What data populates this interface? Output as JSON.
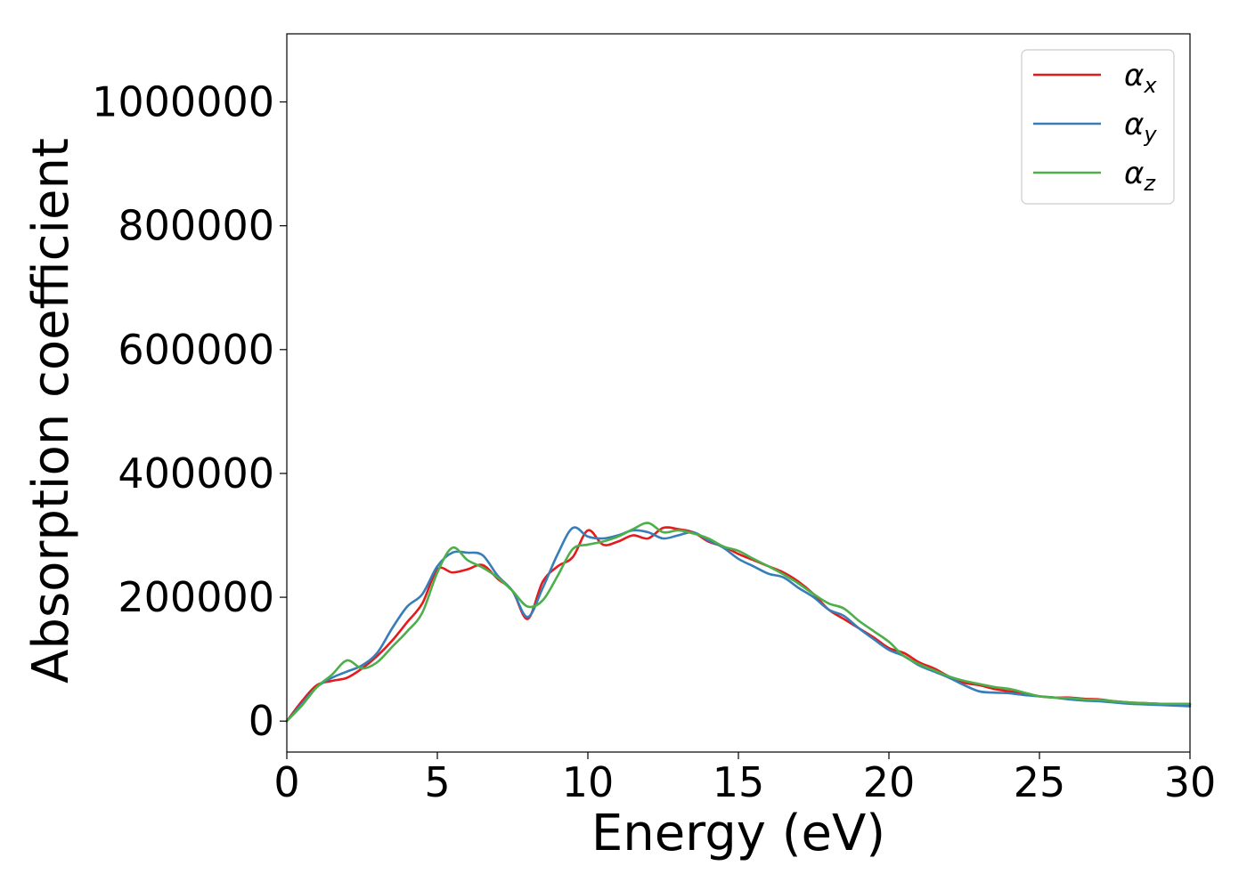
{
  "chart_data": {
    "type": "line",
    "title": "",
    "xlabel": "Energy (eV)",
    "ylabel": "Absorption coefficient",
    "xlim": [
      0,
      30
    ],
    "ylim": [
      -50000,
      1110000
    ],
    "xticks": [
      0,
      5,
      10,
      15,
      20,
      25,
      30
    ],
    "xtick_labels": [
      "0",
      "5",
      "10",
      "15",
      "20",
      "25",
      "30"
    ],
    "yticks": [
      0,
      200000,
      400000,
      600000,
      800000,
      1000000
    ],
    "ytick_labels": [
      "0",
      "200000",
      "400000",
      "600000",
      "800000",
      "1000000"
    ],
    "grid": false,
    "legend_position": "top-right",
    "x": [
      0,
      0.5,
      1,
      1.5,
      2,
      2.5,
      3,
      3.5,
      4,
      4.5,
      5,
      5.5,
      6,
      6.5,
      7,
      7.5,
      8,
      8.5,
      9,
      9.5,
      10,
      10.5,
      11,
      11.5,
      12,
      12.5,
      13,
      13.5,
      14,
      14.5,
      15,
      15.5,
      16,
      16.5,
      17,
      17.5,
      18,
      18.5,
      19,
      19.5,
      20,
      20.5,
      21,
      21.5,
      22,
      22.5,
      23,
      23.5,
      24,
      24.5,
      25,
      25.5,
      26,
      26.5,
      27,
      27.5,
      28,
      28.5,
      29,
      29.5,
      30
    ],
    "series": [
      {
        "name": "α_x",
        "legend_main": "α",
        "legend_sub": "x",
        "color": "#e41a1c",
        "values": [
          0,
          32000,
          58000,
          65000,
          70000,
          85000,
          105000,
          130000,
          160000,
          190000,
          245000,
          240000,
          245000,
          252000,
          230000,
          210000,
          165000,
          225000,
          250000,
          265000,
          308000,
          285000,
          290000,
          300000,
          295000,
          312000,
          310000,
          305000,
          290000,
          282000,
          270000,
          260000,
          250000,
          240000,
          225000,
          205000,
          180000,
          165000,
          150000,
          135000,
          118000,
          110000,
          95000,
          85000,
          72000,
          62000,
          58000,
          52000,
          48000,
          45000,
          40000,
          38000,
          38000,
          36000,
          35000,
          32000,
          30000,
          29000,
          28000,
          27000,
          27000
        ]
      },
      {
        "name": "α_y",
        "legend_main": "α",
        "legend_sub": "y",
        "color": "#377eb8",
        "values": [
          0,
          28000,
          55000,
          70000,
          80000,
          90000,
          110000,
          150000,
          185000,
          205000,
          250000,
          272000,
          272000,
          268000,
          235000,
          210000,
          168000,
          215000,
          270000,
          312000,
          298000,
          295000,
          300000,
          308000,
          305000,
          295000,
          300000,
          305000,
          292000,
          280000,
          262000,
          250000,
          238000,
          232000,
          215000,
          200000,
          180000,
          170000,
          150000,
          132000,
          115000,
          105000,
          90000,
          80000,
          70000,
          58000,
          48000,
          46000,
          45000,
          42000,
          40000,
          38000,
          35000,
          33000,
          32000,
          30000,
          28000,
          27000,
          26000,
          25000,
          24000
        ]
      },
      {
        "name": "α_z",
        "legend_main": "α",
        "legend_sub": "z",
        "color": "#4daf4a",
        "values": [
          0,
          25000,
          55000,
          75000,
          98000,
          85000,
          95000,
          120000,
          145000,
          175000,
          240000,
          280000,
          260000,
          248000,
          232000,
          210000,
          185000,
          195000,
          235000,
          278000,
          285000,
          290000,
          298000,
          310000,
          320000,
          305000,
          308000,
          303000,
          295000,
          282000,
          275000,
          262000,
          250000,
          237000,
          222000,
          205000,
          190000,
          182000,
          162000,
          145000,
          128000,
          105000,
          92000,
          82000,
          72000,
          65000,
          60000,
          55000,
          52000,
          46000,
          40000,
          38000,
          37000,
          35000,
          34000,
          32000,
          30000,
          29000,
          28000,
          28000,
          28000
        ]
      }
    ]
  }
}
